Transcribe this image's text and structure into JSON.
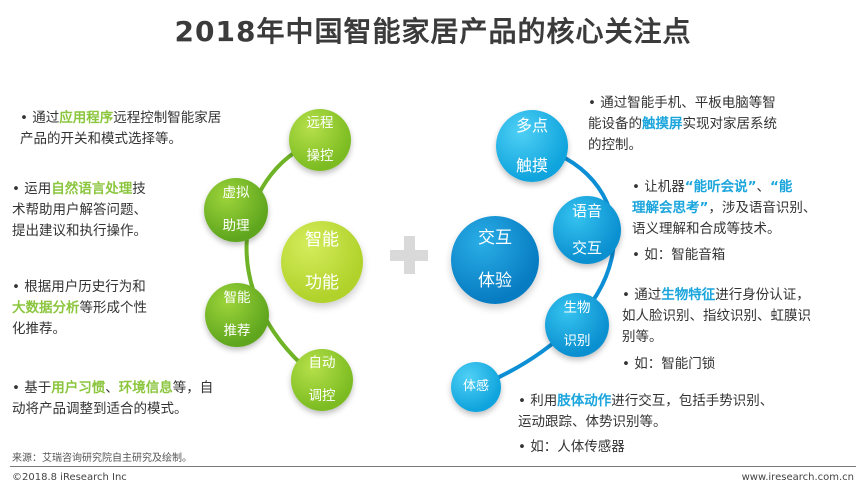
{
  "title": "2018年中国智能家居产品的核心关注点",
  "left": {
    "center": "智能\n功能",
    "nodes": [
      "远程\n操控",
      "虚拟\n助理",
      "智能\n推荐",
      "自动\n调控"
    ],
    "bullets": [
      {
        "parts": [
          [
            "t",
            "通过"
          ],
          [
            "h",
            "应用程序"
          ],
          [
            "t",
            "远程控制智能家居\n产品的开关和模式选择等。"
          ]
        ]
      },
      {
        "parts": [
          [
            "t",
            "运用"
          ],
          [
            "h",
            "自然语言处理"
          ],
          [
            "t",
            "技\n术帮助用户解答问题、\n提出建议和执行操作。"
          ]
        ]
      },
      {
        "parts": [
          [
            "t",
            "根据用户历史行为和\n"
          ],
          [
            "h",
            "大数据分析"
          ],
          [
            "t",
            "等形成个性\n化推荐。"
          ]
        ]
      },
      {
        "parts": [
          [
            "t",
            "基于"
          ],
          [
            "h",
            "用户习惯"
          ],
          [
            "t",
            "、"
          ],
          [
            "h",
            "环境信息"
          ],
          [
            "t",
            "等，自\n动将产品调整到适合的模式。"
          ]
        ]
      }
    ]
  },
  "right": {
    "center": "交互\n体验",
    "nodes": [
      "多点\n触摸",
      "语音\n交互",
      "生物\n识别",
      "体感"
    ],
    "bullets": [
      {
        "parts": [
          [
            "t",
            "通过智能手机、平板电脑等智\n能设备的"
          ],
          [
            "h",
            "触摸屏"
          ],
          [
            "t",
            "实现对家居系统\n的控制。"
          ]
        ]
      },
      {
        "parts": [
          [
            "t",
            "让机器"
          ],
          [
            "h",
            "“能听会说”"
          ],
          [
            "t",
            "、"
          ],
          [
            "h",
            "“能\n理解会思考”"
          ],
          [
            "t",
            "，涉及语音识别、\n语义理解和合成等技术。"
          ]
        ]
      },
      {
        "parts": [
          [
            "t",
            "如：智能音箱"
          ]
        ]
      },
      {
        "parts": [
          [
            "t",
            "通过"
          ],
          [
            "h",
            "生物特征"
          ],
          [
            "t",
            "进行身份认证，\n如人脸识别、指纹识别、虹膜识\n别等。"
          ]
        ]
      },
      {
        "parts": [
          [
            "t",
            "如：智能门锁"
          ]
        ]
      },
      {
        "parts": [
          [
            "t",
            "利用"
          ],
          [
            "h",
            "肢体动作"
          ],
          [
            "t",
            "进行交互，包括手势识别、\n运动跟踪、体势识别等。"
          ]
        ]
      },
      {
        "parts": [
          [
            "t",
            "如：人体传感器"
          ]
        ]
      }
    ]
  },
  "footer": {
    "source": "来源：艾瑞咨询研究院自主研究及绘制。",
    "copyright": "©2018.8 iResearch Inc",
    "site": "www.iresearch.com.cn"
  },
  "colors": {
    "green": "#8cc63f",
    "blue": "#1aa5dc",
    "arc_green": "#6fb327",
    "arc_blue": "#0d8fd6"
  }
}
